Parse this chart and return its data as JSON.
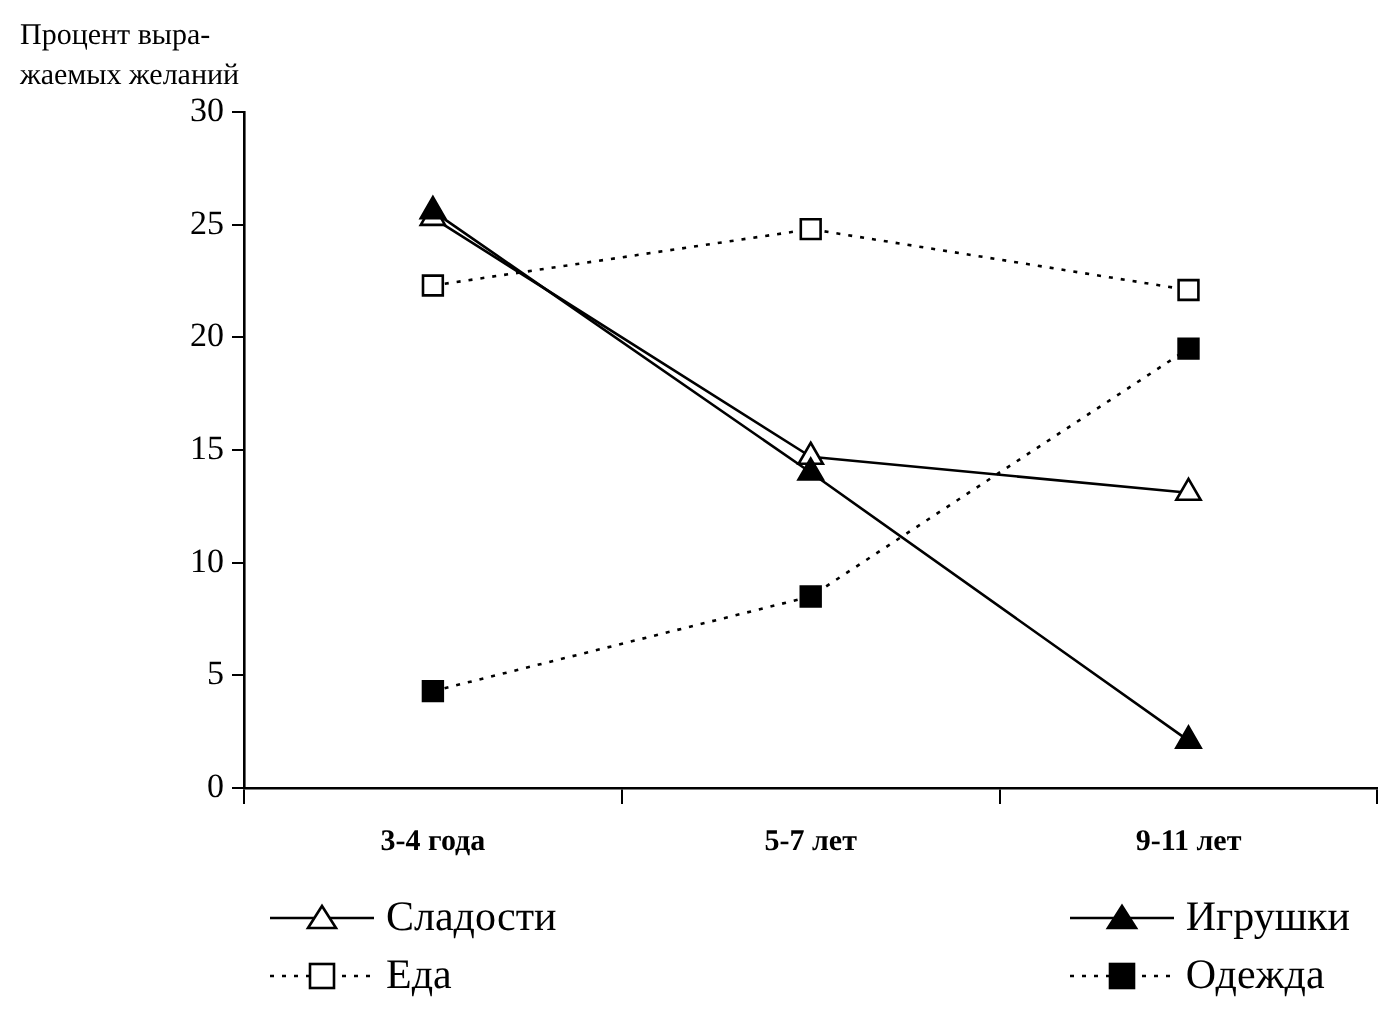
{
  "chart_data": {
    "type": "line",
    "ylabel": "Процент выра-\nжаемых желаний",
    "categories": [
      "3-4 года",
      "5-7 лет",
      "9-11 лет"
    ],
    "series": [
      {
        "name": "Сладости",
        "color": "#000000",
        "values": [
          25.3,
          14.7,
          13.1
        ],
        "marker": "triangle",
        "line_style": "solid"
      },
      {
        "name": "Игрушки",
        "color": "#000000",
        "values": [
          25.6,
          14.0,
          2.1
        ],
        "marker": "triangle",
        "line_style": "solid"
      },
      {
        "name": "Еда",
        "color": "#000000",
        "values": [
          22.3,
          24.8,
          22.1
        ],
        "marker": "square",
        "line_style": "dotted"
      },
      {
        "name": "Одежда",
        "color": "#000000",
        "values": [
          4.3,
          8.5,
          19.5
        ],
        "marker": "square",
        "line_style": "dotted"
      }
    ],
    "ylim": [
      0,
      30
    ],
    "yticks": [
      0,
      5,
      10,
      15,
      20,
      25,
      30
    ],
    "grid": false,
    "legend": "bottom"
  }
}
